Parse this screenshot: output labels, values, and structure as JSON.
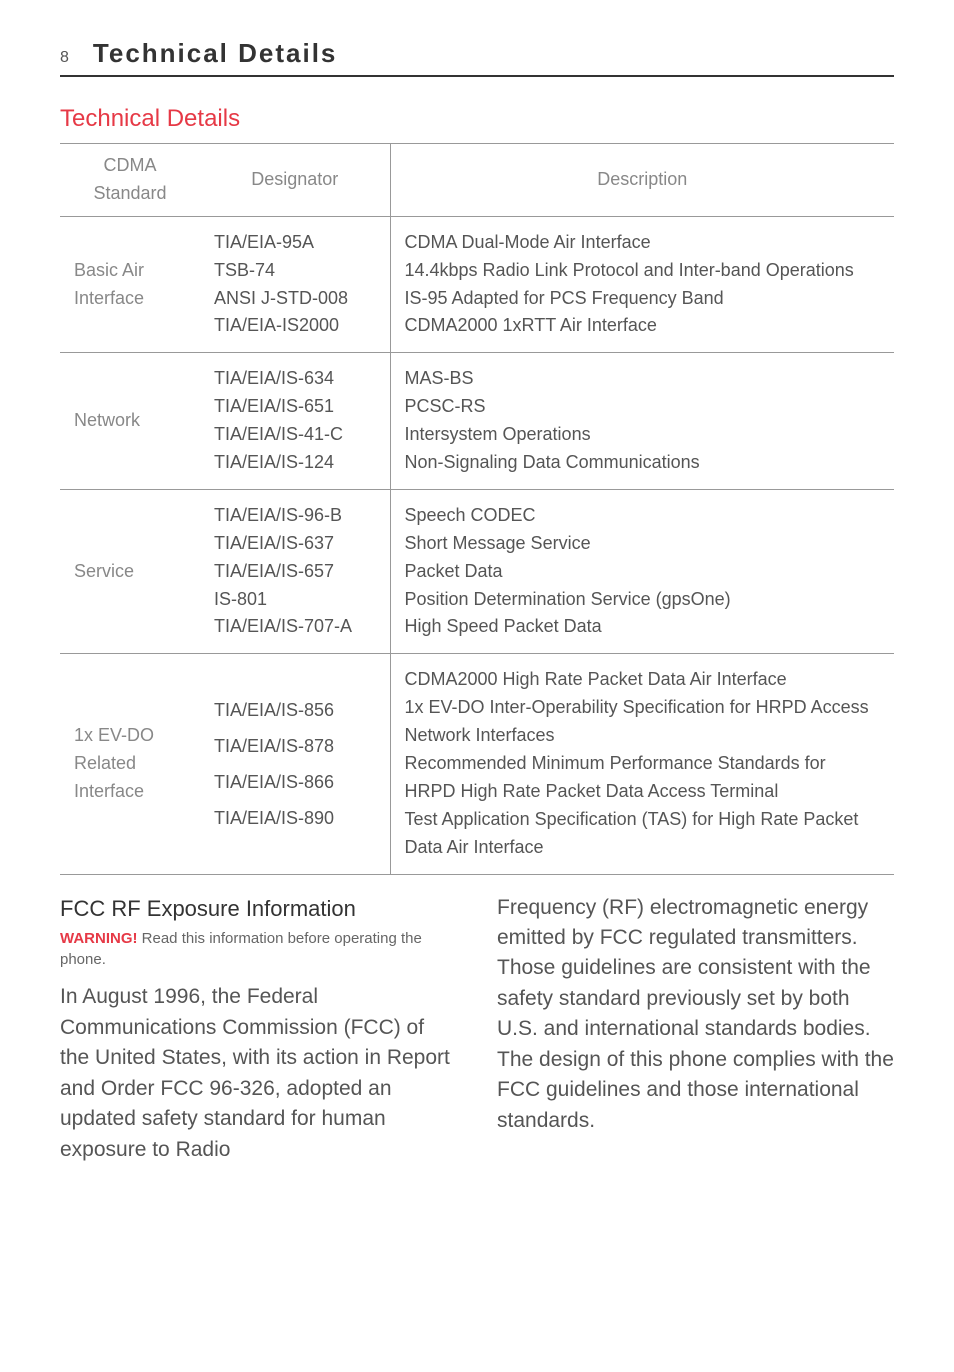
{
  "page": {
    "number": "8",
    "header_title": "Technical Details",
    "section_title": "Technical Details"
  },
  "table": {
    "headers": {
      "std": "CDMA Standard",
      "desig": "Designator",
      "desc": "Description"
    },
    "rows": [
      {
        "std": "Basic Air Interface",
        "desig": "TIA/EIA-95A\nTSB-74\nANSI J-STD-008\nTIA/EIA-IS2000",
        "desc": "CDMA Dual-Mode Air Interface\n14.4kbps Radio Link Protocol and Inter-band Operations\nIS-95 Adapted for PCS Frequency Band\nCDMA2000 1xRTT Air Interface"
      },
      {
        "std": "Network",
        "desig": "TIA/EIA/IS-634\nTIA/EIA/IS-651\nTIA/EIA/IS-41-C\nTIA/EIA/IS-124",
        "desc": "MAS-BS\nPCSC-RS\nIntersystem Operations\nNon-Signaling Data Communications"
      },
      {
        "std": "Service",
        "desig": "TIA/EIA/IS-96-B\nTIA/EIA/IS-637\nTIA/EIA/IS-657\nIS-801\nTIA/EIA/IS-707-A",
        "desc": "Speech CODEC\nShort Message Service\nPacket Data\nPosition Determination Service (gpsOne)\nHigh Speed Packet Data"
      },
      {
        "std": "1x EV-DO Related Interface",
        "desig": "TIA/EIA/IS-856\nTIA/EIA/IS-878\nTIA/EIA/IS-866\nTIA/EIA/IS-890",
        "desc": "CDMA2000 High Rate Packet Data Air Interface\n1x EV-DO Inter-Operability Specification for HRPD Access Network Interfaces\nRecommended Minimum Performance Standards for HRPD High Rate Packet Data Access Terminal\nTest Application Specification (TAS) for High Rate Packet Data Air Interface"
      }
    ]
  },
  "body": {
    "sub_heading": "FCC RF Exposure Information",
    "warning_label": "WARNING!",
    "warning_text": " Read this information before operating the phone.",
    "left_col": "In August 1996, the Federal Communications Commission (FCC) of the United States, with its action in Report and Order FCC 96-326, adopted an updated safety standard for human exposure to Radio",
    "right_col": "Frequency (RF) electromagnetic energy emitted by FCC regulated transmitters. Those guidelines are consistent with the safety standard previously set by both U.S. and international standards bodies. The design of this phone complies with the FCC guidelines and those international standards."
  }
}
